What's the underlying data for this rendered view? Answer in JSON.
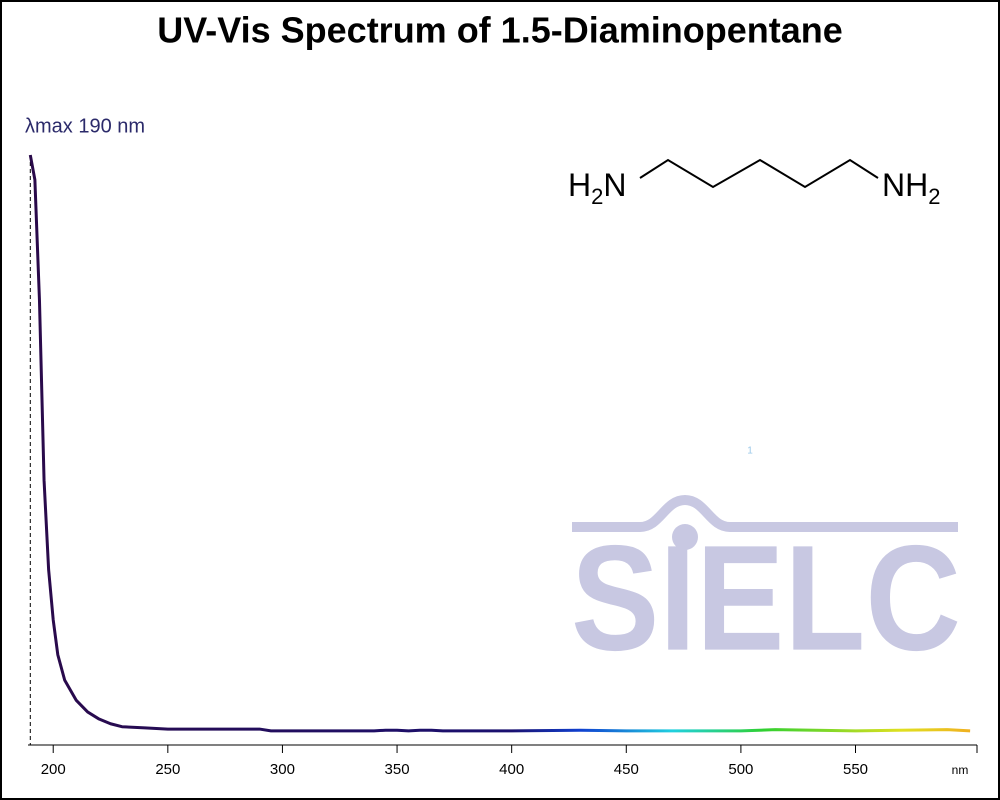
{
  "chart_data": {
    "type": "line",
    "title": "UV-Vis Spectrum of 1.5-Diaminopentane",
    "annotation": "λmax  190 nm",
    "x_label": "nm",
    "watermark": "SIELC",
    "marker_note": "1",
    "structure": {
      "left": [
        "H",
        "2",
        "N"
      ],
      "right": [
        "NH",
        "2"
      ]
    },
    "x": [
      190,
      192,
      194,
      196,
      198,
      200,
      202,
      205,
      210,
      215,
      220,
      225,
      230,
      240,
      250,
      290,
      295,
      340,
      345,
      350,
      355,
      360,
      365,
      370,
      400,
      430,
      450,
      500,
      515,
      550,
      590,
      600
    ],
    "series": [
      {
        "name": "1.5-Diaminopentane",
        "values": [
          1.0,
          0.958,
          0.754,
          0.449,
          0.297,
          0.212,
          0.153,
          0.11,
          0.076,
          0.056,
          0.044,
          0.036,
          0.031,
          0.029,
          0.027,
          0.027,
          0.024,
          0.024,
          0.025,
          0.025,
          0.024,
          0.025,
          0.025,
          0.024,
          0.024,
          0.025,
          0.024,
          0.024,
          0.026,
          0.024,
          0.026,
          0.024
        ]
      }
    ],
    "color_stops": [
      {
        "x": 190,
        "color": "#2a0a4a"
      },
      {
        "x": 400,
        "color": "#1a1070"
      },
      {
        "x": 430,
        "color": "#1040d0"
      },
      {
        "x": 470,
        "color": "#20d0e0"
      },
      {
        "x": 510,
        "color": "#30d030"
      },
      {
        "x": 570,
        "color": "#e0e020"
      },
      {
        "x": 600,
        "color": "#f0b020"
      }
    ],
    "xlim": [
      189,
      603
    ],
    "ylim": [
      0,
      1
    ],
    "xticks": [
      200,
      250,
      300,
      350,
      400,
      450,
      500,
      550
    ],
    "lambda_max": 190
  }
}
